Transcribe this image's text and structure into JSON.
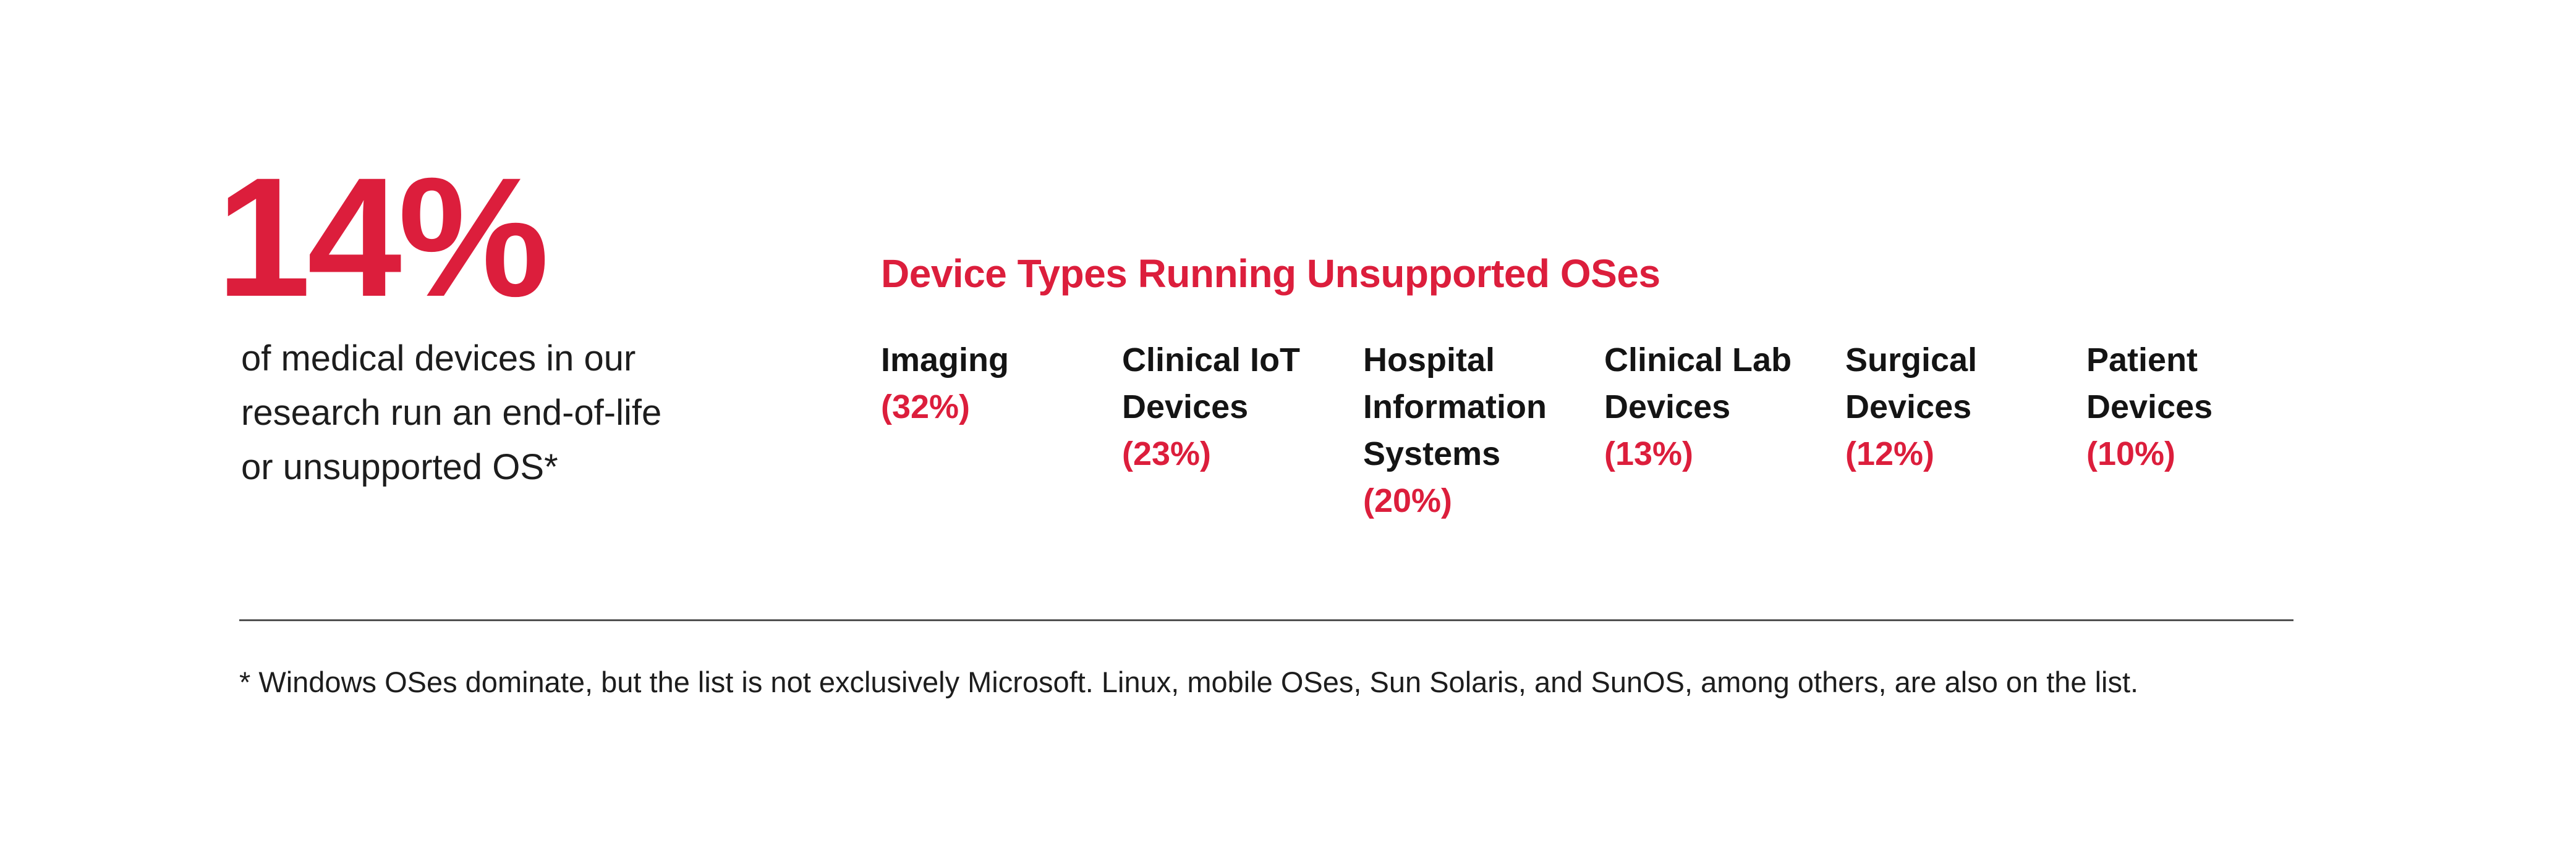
{
  "colors": {
    "accent_red": "#DC1E3C",
    "text_black": "#141414",
    "divider_gray": "#4f4f4f",
    "background": "#FFFFFF"
  },
  "stat": {
    "value": "14%",
    "description_lines": [
      "of medical devices in our",
      "research run an end-of-life",
      "or unsupported OS*"
    ]
  },
  "section": {
    "title": "Device Types Running Unsupported OSes"
  },
  "columns": [
    {
      "lines": [
        "Imaging"
      ],
      "value": "(32%)"
    },
    {
      "lines": [
        "Clinical IoT",
        "Devices"
      ],
      "value": "(23%)"
    },
    {
      "lines": [
        "Hospital",
        "Information",
        "Systems"
      ],
      "value": "(20%)"
    },
    {
      "lines": [
        "Clinical Lab",
        "Devices"
      ],
      "value": "(13%)"
    },
    {
      "lines": [
        "Surgical",
        "Devices"
      ],
      "value": "(12%)"
    },
    {
      "lines": [
        "Patient",
        "Devices"
      ],
      "value": "(10%)"
    }
  ],
  "footnote": "* Windows OSes dominate, but the list is not exclusively Microsoft. Linux, mobile OSes, Sun Solaris, and SunOS, among others, are also on the list.",
  "chart_data": {
    "type": "table",
    "title": "Device Types Running Unsupported OSes",
    "categories": [
      "Imaging",
      "Clinical IoT Devices",
      "Hospital Information Systems",
      "Clinical Lab Devices",
      "Surgical Devices",
      "Patient Devices"
    ],
    "values": [
      32,
      23,
      20,
      13,
      12,
      10
    ],
    "unit": "%",
    "headline_stat": {
      "value": 14,
      "unit": "%",
      "description": "of medical devices in our research run an end-of-life or unsupported OS*"
    },
    "footnote": "* Windows OSes dominate, but the list is not exclusively Microsoft. Linux, mobile OSes, Sun Solaris, and SunOS, among others, are also on the list.",
    "legend_position": "none",
    "grid": false
  }
}
